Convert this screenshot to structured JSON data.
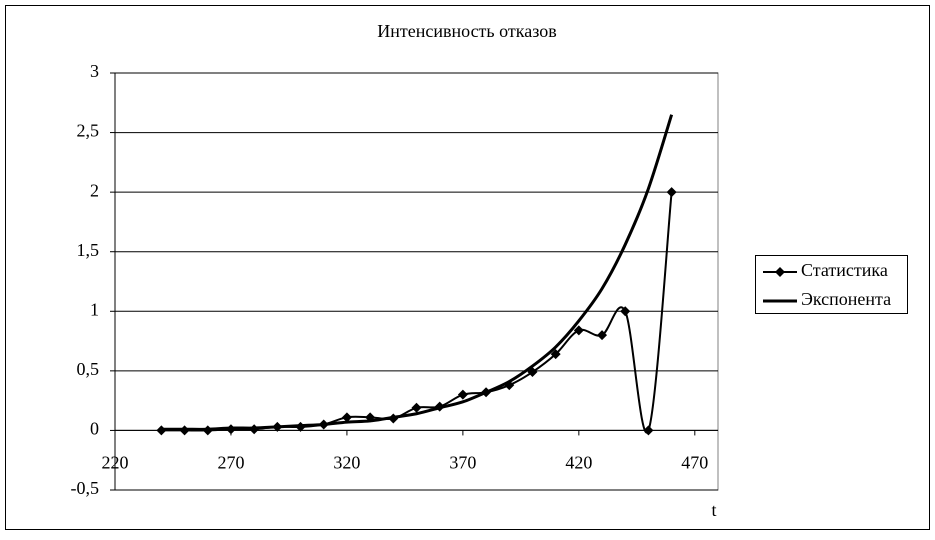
{
  "chart_data": {
    "type": "line",
    "title": "Интенсивность отказов",
    "x_label": "t",
    "x": [
      240,
      250,
      260,
      270,
      280,
      290,
      300,
      310,
      320,
      330,
      340,
      350,
      360,
      370,
      380,
      390,
      400,
      410,
      420,
      430,
      440,
      450,
      460
    ],
    "series": [
      {
        "name": "Статистика",
        "color": "#000000",
        "marker": "diamond",
        "smooth": true,
        "values": [
          0,
          0,
          0,
          0.01,
          0.01,
          0.03,
          0.03,
          0.05,
          0.11,
          0.11,
          0.1,
          0.19,
          0.2,
          0.3,
          0.32,
          0.38,
          0.49,
          0.64,
          0.84,
          0.8,
          1.0,
          0,
          2.0
        ]
      },
      {
        "name": "Экспонента",
        "color": "#000000",
        "marker": "none",
        "smooth": true,
        "values": [
          0.01,
          0.01,
          0.01,
          0.02,
          0.02,
          0.03,
          0.04,
          0.05,
          0.07,
          0.08,
          0.11,
          0.14,
          0.19,
          0.24,
          0.32,
          0.41,
          0.54,
          0.7,
          0.92,
          1.19,
          1.56,
          2.03,
          2.65
        ]
      }
    ],
    "xlim": [
      220,
      480
    ],
    "xticks": [
      220,
      270,
      320,
      370,
      420,
      470
    ],
    "ylim": [
      -0.5,
      3
    ],
    "yticks": [
      {
        "value": -0.5,
        "label": "-0,5"
      },
      0,
      {
        "value": 0.5,
        "label": "0,5"
      },
      1,
      {
        "value": 1.5,
        "label": "1,5"
      },
      2,
      {
        "value": 2.5,
        "label": "2,5"
      },
      3
    ],
    "grid": true,
    "legend": "right"
  }
}
